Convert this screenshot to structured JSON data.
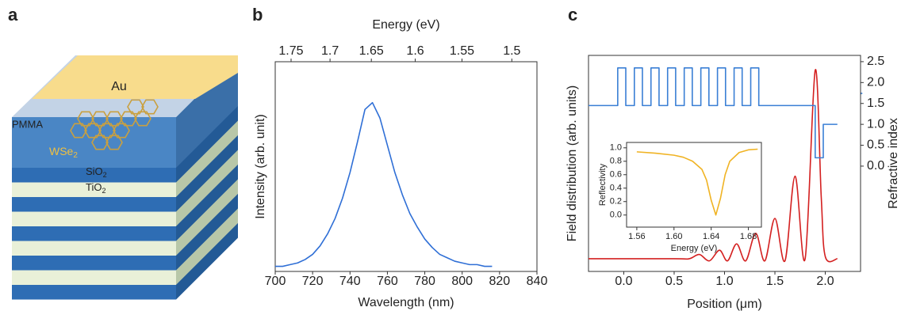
{
  "panel_labels": [
    "a",
    "b",
    "c"
  ],
  "diagram": {
    "top": "Au",
    "polymer": "PMMA",
    "material": "WSe",
    "material_sub": "2",
    "layer1": "SiO",
    "layer1_sub": "2",
    "layer2": "TiO",
    "layer2_sub": "2"
  },
  "chart_data": [
    {
      "type": "line",
      "x_label": "Wavelength (nm)",
      "y_label": "Intensity (arb. unit)",
      "x2_label": "Energy (eV)",
      "xlim": [
        700,
        840
      ],
      "xticks": [
        700,
        720,
        740,
        760,
        780,
        800,
        820,
        840
      ],
      "x2lim": [
        1.7712,
        1.476
      ],
      "x2scale": "reciprocal",
      "x2ticks": [
        1.75,
        1.7,
        1.65,
        1.6,
        1.55,
        1.5
      ],
      "ylim": [
        0,
        1.23
      ],
      "x": [
        700,
        704,
        708,
        712,
        716,
        720,
        724,
        728,
        732,
        736,
        740,
        744,
        748,
        752,
        756,
        760,
        764,
        768,
        772,
        776,
        780,
        784,
        788,
        792,
        796,
        800,
        804,
        808,
        812,
        816
      ],
      "series": [
        {
          "color": "#2f6fd6",
          "values": [
            0.03,
            0.03,
            0.04,
            0.05,
            0.07,
            0.1,
            0.15,
            0.22,
            0.31,
            0.43,
            0.58,
            0.76,
            0.95,
            0.99,
            0.9,
            0.74,
            0.58,
            0.45,
            0.34,
            0.26,
            0.19,
            0.14,
            0.1,
            0.08,
            0.06,
            0.05,
            0.04,
            0.04,
            0.03,
            0.03
          ]
        }
      ]
    },
    {
      "type": "line",
      "x_label": "Position (μm)",
      "y_label": "Field distribution (arb. units)",
      "y2_label": "Refractive index",
      "xlim": [
        -0.35,
        2.35
      ],
      "xticks": [
        {
          "value": 0,
          "label": "0.0"
        },
        0.5,
        {
          "value": 1,
          "label": "1.0"
        },
        1.5,
        {
          "value": 2,
          "label": "2.0"
        }
      ],
      "ylim": [
        0,
        1.02
      ],
      "y2lim": [
        -2.52,
        2.65
      ],
      "y2ticks": [
        {
          "value": 0,
          "label": "0.0"
        },
        0.5,
        {
          "value": 1,
          "label": "1.0"
        },
        1.5,
        {
          "value": 2,
          "label": "2.0"
        },
        2.5
      ],
      "series": [
        {
          "color": "#d42020",
          "smooth": true,
          "x": [
            -0.35,
            0.5,
            0.65,
            0.75,
            0.85,
            0.95,
            1.03,
            1.12,
            1.21,
            1.31,
            1.4,
            1.5,
            1.6,
            1.7,
            1.8,
            1.9,
            1.96,
            2.0,
            2.12
          ],
          "values": [
            0.06,
            0.06,
            0.06,
            0.08,
            0.05,
            0.1,
            0.05,
            0.13,
            0.05,
            0.18,
            0.05,
            0.25,
            0.05,
            0.45,
            0.06,
            0.95,
            0.35,
            0.07,
            0.06
          ]
        },
        {
          "color": "#3a7fd5",
          "axis": "y2",
          "x": [
            -0.35,
            -0.06,
            -0.06,
            0.02,
            0.02,
            0.105,
            0.105,
            0.185,
            0.185,
            0.27,
            0.27,
            0.35,
            0.35,
            0.435,
            0.435,
            0.515,
            0.515,
            0.6,
            0.6,
            0.68,
            0.68,
            0.765,
            0.765,
            0.845,
            0.845,
            0.93,
            0.93,
            1.01,
            1.01,
            1.095,
            1.095,
            1.175,
            1.175,
            1.26,
            1.26,
            1.34,
            1.34,
            1.9,
            1.9,
            1.98,
            1.98,
            2.12
          ],
          "values": [
            1.45,
            1.45,
            2.35,
            2.35,
            1.45,
            1.45,
            2.35,
            2.35,
            1.45,
            1.45,
            2.35,
            2.35,
            1.45,
            1.45,
            2.35,
            2.35,
            1.45,
            1.45,
            2.35,
            2.35,
            1.45,
            1.45,
            2.35,
            2.35,
            1.45,
            1.45,
            2.35,
            2.35,
            1.45,
            1.45,
            2.35,
            2.35,
            1.45,
            1.45,
            2.35,
            2.35,
            1.45,
            1.45,
            0.2,
            0.2,
            1.0,
            1.0
          ]
        }
      ]
    },
    {
      "type": "line",
      "x_label": "Energy (eV)",
      "y_label": "Reflectivity",
      "xlim": [
        1.549,
        1.694
      ],
      "xticks": [
        1.56,
        {
          "value": 1.6,
          "label": "1.60"
        },
        1.64,
        1.68
      ],
      "ylim": [
        -0.18,
        1.08
      ],
      "yticks": [
        {
          "value": 0,
          "label": "0.0"
        },
        0.2,
        0.4,
        0.6,
        0.8,
        {
          "value": 1,
          "label": "1.0"
        }
      ],
      "x": [
        1.56,
        1.58,
        1.6,
        1.61,
        1.62,
        1.63,
        1.635,
        1.64,
        1.645,
        1.65,
        1.655,
        1.66,
        1.67,
        1.68,
        1.69
      ],
      "series": [
        {
          "color": "#f0b323",
          "values": [
            0.94,
            0.92,
            0.89,
            0.86,
            0.8,
            0.68,
            0.52,
            0.22,
            0.0,
            0.25,
            0.6,
            0.8,
            0.93,
            0.97,
            0.98
          ]
        }
      ]
    }
  ]
}
